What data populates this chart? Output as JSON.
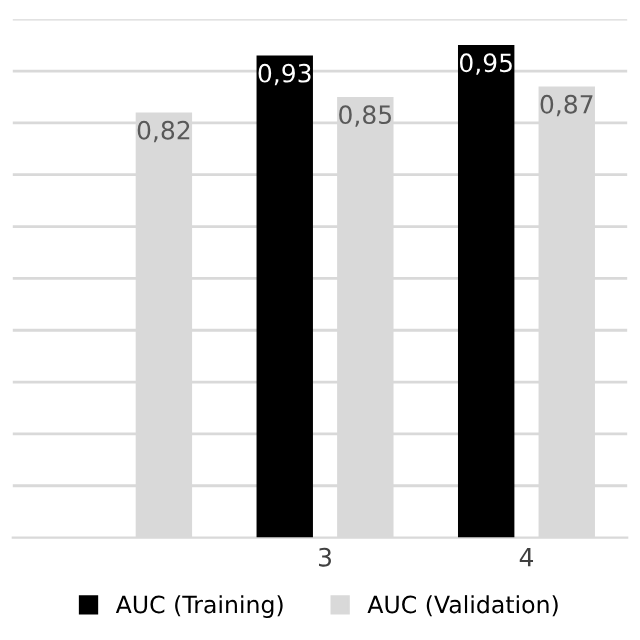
{
  "chart_data": {
    "type": "bar",
    "categories": [
      null,
      "3",
      "4"
    ],
    "series": [
      {
        "name": "AUC (Training)",
        "color": "#000000",
        "values": [
          null,
          0.93,
          0.95
        ],
        "value_labels": [
          null,
          "0,93",
          "0,95"
        ]
      },
      {
        "name": "AUC (Validation)",
        "color": "#d9d9d9",
        "values": [
          0.82,
          0.85,
          0.87
        ],
        "value_labels": [
          "0,82",
          "0,85",
          "0,87"
        ]
      }
    ],
    "ylim": [
      0,
      1.0
    ],
    "yticks": [
      {
        "value": 0.1,
        "label": null
      },
      {
        "value": 0.2,
        "label": null
      },
      {
        "value": 0.3,
        "label": null
      },
      {
        "value": 0.4,
        "label": null
      },
      {
        "value": 0.5,
        "label": null
      },
      {
        "value": 0.6,
        "label": null
      },
      {
        "value": 0.7,
        "label": null
      },
      {
        "value": 0.8,
        "label": null
      },
      {
        "value": 0.9,
        "label": null
      },
      {
        "value": 1.0,
        "label": null
      }
    ],
    "tick_labels": "x",
    "grid": "y",
    "legend": "bottom"
  }
}
